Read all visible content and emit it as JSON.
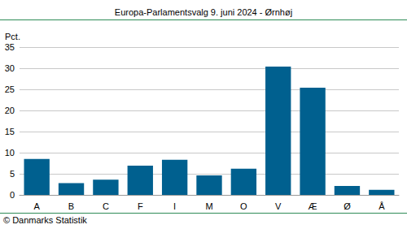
{
  "chart_data": {
    "type": "bar",
    "title": "Europa-Parlamentsvalg 9. juni 2024 - Ørnhøj",
    "ylabel": "Pct.",
    "annotations": [
      "© Danmarks Statistik"
    ],
    "categories": [
      "A",
      "B",
      "C",
      "F",
      "I",
      "M",
      "O",
      "V",
      "Æ",
      "Ø",
      "Å"
    ],
    "values": [
      8.5,
      2.8,
      3.6,
      6.9,
      8.3,
      4.6,
      6.2,
      30.4,
      25.4,
      2.1,
      1.2
    ],
    "color": "#00608f",
    "ylim": [
      0,
      35
    ],
    "yticks": [
      0,
      5,
      10,
      15,
      20,
      25,
      30,
      35
    ],
    "grid": true
  }
}
